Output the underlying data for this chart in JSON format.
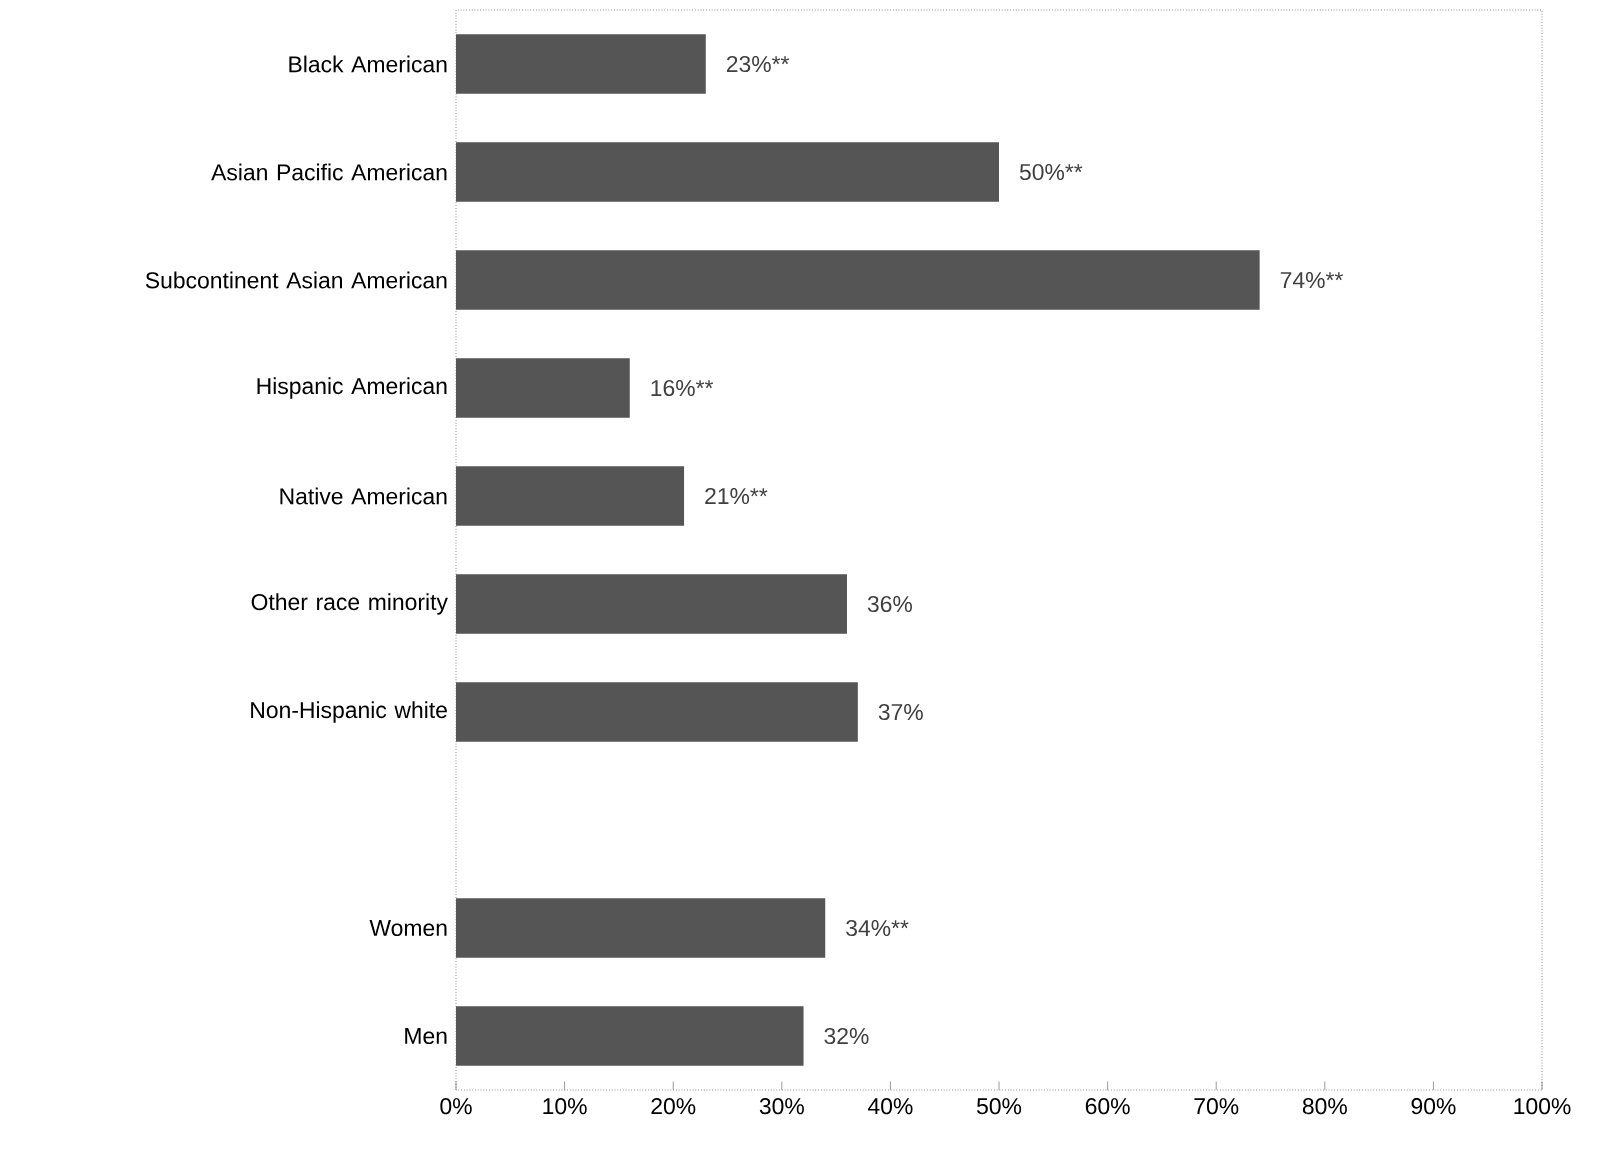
{
  "chart_data": {
    "type": "bar",
    "orientation": "horizontal",
    "categories": [
      "Black American",
      "Asian Pacific American",
      "Subcontinent Asian American",
      "Hispanic American",
      "Native American",
      "Other race minority",
      "Non-Hispanic white",
      null,
      "Women",
      "Men"
    ],
    "values": [
      23,
      50,
      74,
      16,
      21,
      36,
      37,
      null,
      34,
      32
    ],
    "value_labels": [
      "23%**",
      "50%**",
      "74%**",
      "16%**",
      "21%**",
      "36%",
      "37%",
      null,
      "34%**",
      "32%"
    ],
    "color": "#555555",
    "xlim": [
      0,
      100
    ],
    "xticks": [
      {
        "value": 0,
        "label": "0%"
      },
      {
        "value": 10,
        "label": "10%"
      },
      {
        "value": 20,
        "label": "20%"
      },
      {
        "value": 30,
        "label": "30%"
      },
      {
        "value": 40,
        "label": "40%"
      },
      {
        "value": 50,
        "label": "50%"
      },
      {
        "value": 60,
        "label": "60%"
      },
      {
        "value": 70,
        "label": "70%"
      },
      {
        "value": 80,
        "label": "80%"
      },
      {
        "value": 90,
        "label": "90%"
      },
      {
        "value": 100,
        "label": "100%"
      }
    ]
  }
}
